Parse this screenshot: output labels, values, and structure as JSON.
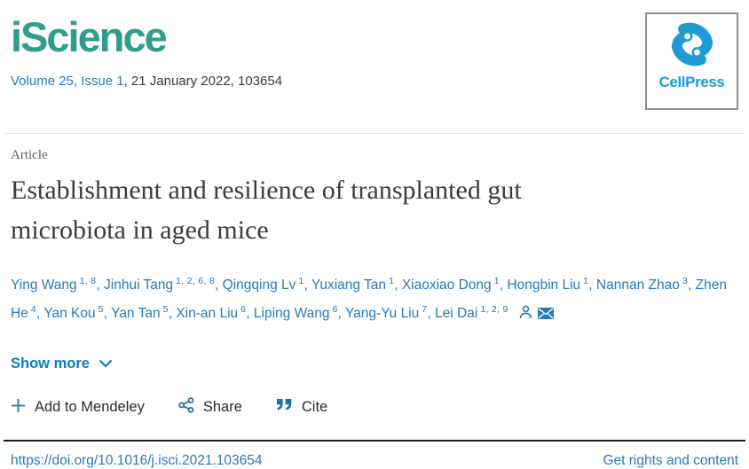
{
  "journal": {
    "name": "iScience",
    "issue_link": "Volume 25, Issue 1",
    "issue_rest": ", 21 January 2022, 103654",
    "publisher_name": "CellPress"
  },
  "article": {
    "type_label": "Article",
    "title": "Establishment and resilience of transplanted gut microbiota in aged mice"
  },
  "authors": {
    "list": [
      {
        "name": "Ying Wang",
        "sup": "1, 8"
      },
      {
        "name": "Jinhui Tang",
        "sup": "1, 2, 6, 8"
      },
      {
        "name": "Qingqing Lv",
        "sup": "1"
      },
      {
        "name": "Yuxiang Tan",
        "sup": "1"
      },
      {
        "name": "Xiaoxiao Dong",
        "sup": "1"
      },
      {
        "name": "Hongbin Liu",
        "sup": "1"
      },
      {
        "name": "Nannan Zhao",
        "sup": "3"
      },
      {
        "name": "Zhen He",
        "sup": "4"
      },
      {
        "name": "Yan Kou",
        "sup": "5"
      },
      {
        "name": "Yan Tan",
        "sup": "5"
      },
      {
        "name": "Xin-an Liu",
        "sup": "6"
      },
      {
        "name": "Liping Wang",
        "sup": "6"
      },
      {
        "name": "Yang-Yu Liu",
        "sup": "7"
      },
      {
        "name": "Lei Dai",
        "sup": "1, 2, 9"
      }
    ]
  },
  "actions": {
    "show_more_label": "Show more",
    "mendeley_label": "Add to Mendeley",
    "share_label": "Share",
    "cite_label": "Cite"
  },
  "footer": {
    "doi_link": "https://doi.org/10.1016/j.isci.2021.103654",
    "rights_link": "Get rights and content"
  },
  "colors": {
    "journal_teal": "#2f9c8e",
    "link_blue": "#2779bd",
    "show_more_blue": "#0d7dbf",
    "publisher_blue": "#1f9ad6",
    "action_icon_teal": "#1f7396",
    "title_gray": "#3c3c3c"
  }
}
